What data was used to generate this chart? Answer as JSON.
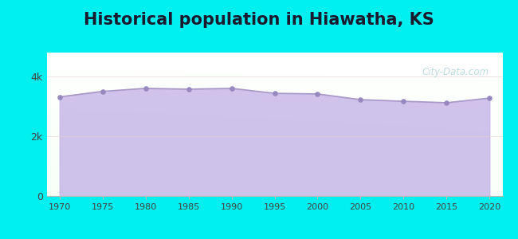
{
  "title": "Historical population in Hiawatha, KS",
  "years": [
    1970,
    1975,
    1980,
    1985,
    1990,
    1995,
    2000,
    2005,
    2010,
    2015,
    2020
  ],
  "population": [
    3318,
    3502,
    3603,
    3576,
    3603,
    3437,
    3417,
    3225,
    3172,
    3122,
    3278
  ],
  "fill_color": "#C8B8E8",
  "fill_alpha": 0.85,
  "line_color": "#A898C8",
  "dot_color": "#9888C0",
  "dot_size": 14,
  "bg_outer": "#00EFEF",
  "title_fontsize": 15,
  "title_color": "#1a1a2e",
  "tick_label_color": "#444444",
  "ytick_labels": [
    "0",
    "2k",
    "4k"
  ],
  "ytick_values": [
    0,
    2000,
    4000
  ],
  "ylim": [
    0,
    4800
  ],
  "xlim": [
    1968.5,
    2021.5
  ],
  "xtick_years": [
    1970,
    1975,
    1980,
    1985,
    1990,
    1995,
    2000,
    2005,
    2010,
    2015,
    2020
  ],
  "watermark": "City-Data.com",
  "watermark_color": "#90c4cc",
  "watermark_alpha": 0.6
}
